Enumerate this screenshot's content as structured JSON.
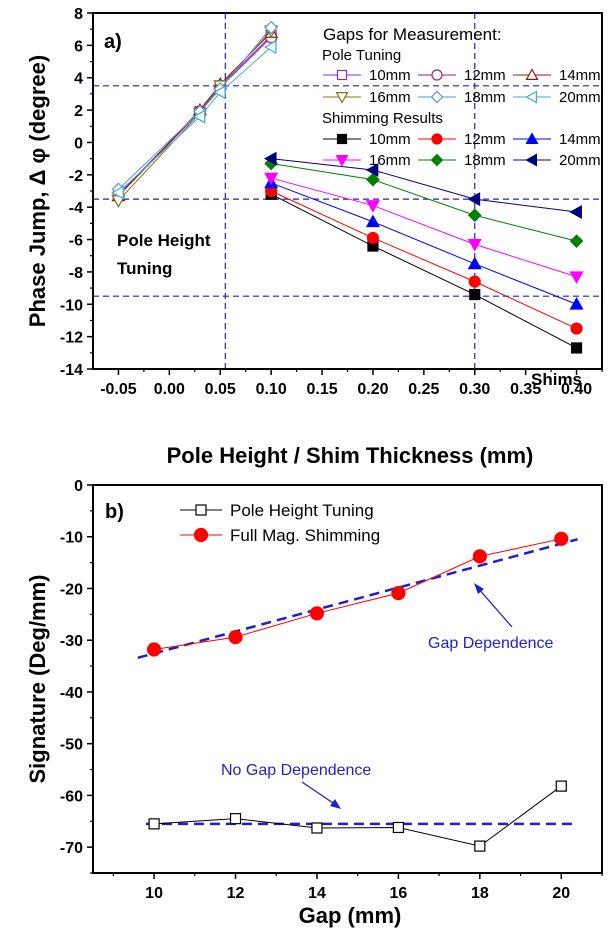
{
  "chart_data": [
    {
      "panel": "a)",
      "type": "line",
      "xlabel": "Pole Height / Shim Thickness (mm)",
      "ylabel": "Phase Jump, Δ φ (degree)",
      "xlim": [
        -0.075,
        0.425
      ],
      "ylim": [
        -14,
        8
      ],
      "xticks": [
        -0.05,
        0.0,
        0.05,
        0.1,
        0.15,
        0.2,
        0.25,
        0.3,
        0.35,
        0.4
      ],
      "xtick_labels": [
        "-0.05",
        "0.00",
        "0.05",
        "0.10",
        "0.15",
        "0.20",
        "0.25",
        "0.30",
        "0.35",
        "0.40"
      ],
      "yticks": [
        -14,
        -12,
        -10,
        -8,
        -6,
        -4,
        -2,
        0,
        2,
        4,
        6,
        8
      ],
      "ytick_labels": [
        "-14",
        "-12",
        "-10",
        "-8",
        "-6",
        "-4",
        "-2",
        "0",
        "2",
        "4",
        "6",
        "8"
      ],
      "legend": {
        "title": "Gaps for Measurement:",
        "group1_title": "Pole Tuning",
        "group2_title": "Shimming Results"
      },
      "pole_tuning_series": [
        {
          "name": "10mm",
          "color": "#8a2be2",
          "marker": "square-open",
          "x": [
            -0.05,
            0.03,
            0.05,
            0.1
          ],
          "y": [
            -3.2,
            1.9,
            3.5,
            6.6
          ]
        },
        {
          "name": "12mm",
          "color": "#a0207a",
          "marker": "circle-open",
          "x": [
            -0.05,
            0.03,
            0.05,
            0.1
          ],
          "y": [
            -3.3,
            1.9,
            3.4,
            6.5
          ]
        },
        {
          "name": "14mm",
          "color": "#8b1a1a",
          "marker": "triangle-up-open",
          "x": [
            -0.05,
            0.03,
            0.05,
            0.1
          ],
          "y": [
            -3.3,
            2.0,
            3.6,
            6.8
          ]
        },
        {
          "name": "16mm",
          "color": "#7a7a10",
          "marker": "triangle-down-open",
          "x": [
            -0.05,
            0.03,
            0.05,
            0.1
          ],
          "y": [
            -3.6,
            1.8,
            3.5,
            6.9
          ]
        },
        {
          "name": "18mm",
          "color": "#5a8fd8",
          "marker": "diamond-open",
          "x": [
            -0.05,
            0.03,
            0.05,
            0.1
          ],
          "y": [
            -2.9,
            1.9,
            3.3,
            7.1
          ]
        },
        {
          "name": "20mm",
          "color": "#3aaed0",
          "marker": "triangle-left-open",
          "x": [
            -0.05,
            0.03,
            0.05,
            0.1
          ],
          "y": [
            -3.1,
            1.6,
            3.1,
            5.9
          ]
        }
      ],
      "shimming_series": [
        {
          "name": "10mm",
          "color": "#000000",
          "marker": "square",
          "x": [
            0.1,
            0.2,
            0.3,
            0.4
          ],
          "y": [
            -3.2,
            -6.4,
            -9.4,
            -12.7
          ]
        },
        {
          "name": "12mm",
          "color": "#ff0000",
          "marker": "circle",
          "x": [
            0.1,
            0.2,
            0.3,
            0.4
          ],
          "y": [
            -3.0,
            -5.9,
            -8.6,
            -11.5
          ]
        },
        {
          "name": "14mm",
          "color": "#0000ff",
          "marker": "triangle-up",
          "x": [
            0.1,
            0.2,
            0.3,
            0.4
          ],
          "y": [
            -2.5,
            -4.9,
            -7.5,
            -10.0
          ]
        },
        {
          "name": "16mm",
          "color": "#ff00ff",
          "marker": "triangle-down",
          "x": [
            0.1,
            0.2,
            0.3,
            0.4
          ],
          "y": [
            -2.2,
            -3.9,
            -6.3,
            -8.3
          ]
        },
        {
          "name": "18mm",
          "color": "#008000",
          "marker": "diamond",
          "x": [
            0.1,
            0.2,
            0.3,
            0.4
          ],
          "y": [
            -1.3,
            -2.3,
            -4.5,
            -6.1
          ]
        },
        {
          "name": "20mm",
          "color": "#000080",
          "marker": "triangle-left",
          "x": [
            0.1,
            0.2,
            0.3,
            0.4
          ],
          "y": [
            -1.0,
            -1.7,
            -3.5,
            -4.3
          ]
        }
      ],
      "reference_lines": {
        "vertical_x": [
          0.055,
          0.3
        ],
        "horizontal_y": [
          3.5,
          -3.5,
          -9.5
        ]
      },
      "annotations": {
        "pole_height_tuning": [
          "Pole Height",
          "Tuning"
        ],
        "shims": "Shims"
      }
    },
    {
      "panel": "b)",
      "type": "line",
      "xlabel": "Gap (mm)",
      "ylabel": "Signature (Deg/mm)",
      "xlim": [
        8.5,
        21
      ],
      "ylim": [
        -75,
        0
      ],
      "xticks": [
        10,
        12,
        14,
        16,
        18,
        20
      ],
      "xtick_labels": [
        "10",
        "12",
        "14",
        "16",
        "18",
        "20"
      ],
      "yticks": [
        -70,
        -60,
        -50,
        -40,
        -30,
        -20,
        -10,
        0
      ],
      "ytick_labels": [
        "-70",
        "-60",
        "-50",
        "-40",
        "-30",
        "-20",
        "-10",
        "0"
      ],
      "series": [
        {
          "name": "Pole Height Tuning",
          "color": "#000000",
          "marker": "square-open",
          "x": [
            10,
            12,
            14,
            16,
            18,
            20
          ],
          "y": [
            -65.5,
            -64.5,
            -66.3,
            -66.2,
            -69.8,
            -58.2
          ]
        },
        {
          "name": "Full Mag. Shimming",
          "color": "#ff0000",
          "marker": "circle",
          "x": [
            10,
            12,
            14,
            16,
            18,
            20
          ],
          "y": [
            -31.8,
            -29.4,
            -24.8,
            -20.9,
            -13.8,
            -10.4
          ]
        }
      ],
      "trend_lines": [
        {
          "label": "Gap Dependence",
          "color": "#1f1fcc",
          "x": [
            9.6,
            20.4
          ],
          "y": [
            -33.4,
            -10.5
          ]
        },
        {
          "label": "No Gap Dependence",
          "color": "#1f1fcc",
          "x": [
            9.8,
            20.3
          ],
          "y": [
            -65.5,
            -65.5
          ]
        }
      ]
    }
  ]
}
